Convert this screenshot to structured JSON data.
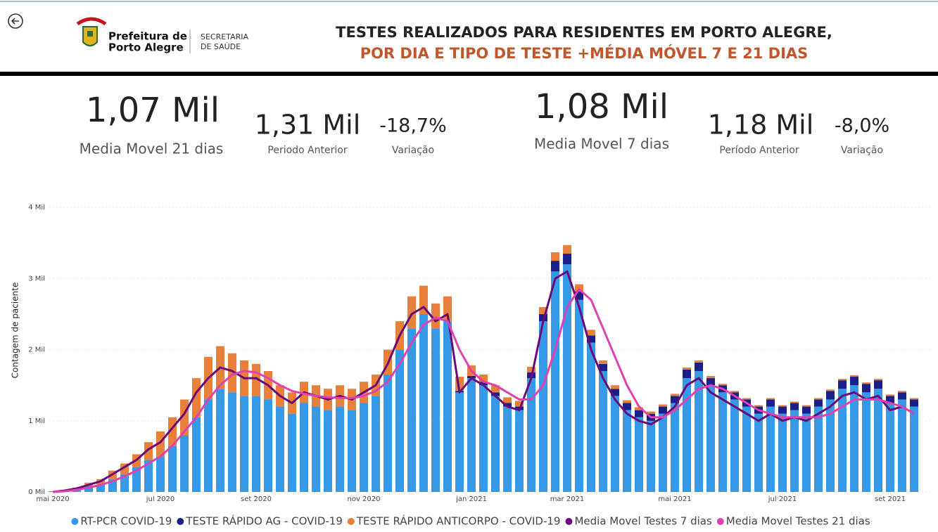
{
  "header": {
    "logo_line1": "Prefeitura de",
    "logo_line2": "Porto Alegre",
    "dept_line1": "SECRETARIA",
    "dept_line2": "DE SAÚDE",
    "title_line1": "TESTES REALIZADOS PARA RESIDENTES EM PORTO ALEGRE,",
    "title_line2": "POR DIA E TIPO DE TESTE +MÉDIA MÓVEL 7 E 21 DIAS"
  },
  "kpis": {
    "mm21": {
      "value": "1,07 Mil",
      "label": "Media Movel 21 dias"
    },
    "prev21": {
      "value": "1,31 Mil",
      "label": "Periodo Anterior"
    },
    "var21": {
      "value": "-18,7%",
      "label": "Variação"
    },
    "mm7": {
      "value": "1,08 Mil",
      "label": "Media Movel 7 dias"
    },
    "prev7": {
      "value": "1,18 Mil",
      "label": "Período Anterior"
    },
    "var7": {
      "value": "-8,0%",
      "label": "Variação"
    }
  },
  "chart_data": {
    "type": "bar",
    "stacked": true,
    "ylabel": "Contagem de paciente",
    "ylim": [
      0,
      4.15
    ],
    "yticks": [
      {
        "value": 0,
        "label": "0 Mil"
      },
      {
        "value": 1,
        "label": "1 Mil"
      },
      {
        "value": 2,
        "label": "2 Mil"
      },
      {
        "value": 3,
        "label": "3 Mil"
      },
      {
        "value": 4,
        "label": "4 Mil"
      }
    ],
    "grid": true,
    "categories": [
      "mai 2020",
      null,
      null,
      null,
      null,
      null,
      null,
      null,
      null,
      "jul 2020",
      null,
      null,
      null,
      null,
      null,
      null,
      null,
      "set 2020",
      null,
      null,
      null,
      null,
      null,
      null,
      null,
      null,
      "nov 2020",
      null,
      null,
      null,
      null,
      null,
      null,
      null,
      null,
      "jan 2021",
      null,
      null,
      null,
      null,
      null,
      null,
      null,
      "mar 2021",
      null,
      null,
      null,
      null,
      null,
      null,
      null,
      null,
      "mai 2021",
      null,
      null,
      null,
      null,
      null,
      null,
      null,
      null,
      "jul 2021",
      null,
      null,
      null,
      null,
      null,
      null,
      null,
      null,
      "set 2021",
      null,
      null
    ],
    "series": [
      {
        "name": "RT-PCR COVID-19",
        "color": "#3599e8",
        "type": "bar",
        "values": [
          0.01,
          0.02,
          0.04,
          0.08,
          0.1,
          0.18,
          0.25,
          0.35,
          0.45,
          0.5,
          0.65,
          0.8,
          1.05,
          1.3,
          1.45,
          1.4,
          1.35,
          1.35,
          1.3,
          1.2,
          1.1,
          1.25,
          1.2,
          1.15,
          1.2,
          1.15,
          1.25,
          1.35,
          1.65,
          2.0,
          2.3,
          2.5,
          2.3,
          2.4,
          1.4,
          1.6,
          1.5,
          1.35,
          1.2,
          1.15,
          1.6,
          2.4,
          3.1,
          3.2,
          2.7,
          2.1,
          1.7,
          1.35,
          1.15,
          1.05,
          1.0,
          1.1,
          1.25,
          1.6,
          1.7,
          1.5,
          1.4,
          1.3,
          1.2,
          1.1,
          1.2,
          1.1,
          1.15,
          1.1,
          1.2,
          1.3,
          1.45,
          1.5,
          1.4,
          1.45,
          1.25,
          1.3,
          1.2
        ]
      },
      {
        "name": "TESTE RÁPIDO AG - COVID-19",
        "color": "#1b1f8a",
        "type": "bar",
        "values": [
          0,
          0,
          0,
          0,
          0,
          0,
          0,
          0,
          0,
          0,
          0,
          0,
          0,
          0,
          0,
          0,
          0,
          0,
          0,
          0,
          0,
          0,
          0,
          0,
          0,
          0,
          0,
          0,
          0,
          0,
          0,
          0,
          0,
          0,
          0.02,
          0.03,
          0.05,
          0.05,
          0.05,
          0.05,
          0.08,
          0.1,
          0.15,
          0.15,
          0.12,
          0.1,
          0.1,
          0.1,
          0.1,
          0.1,
          0.1,
          0.1,
          0.1,
          0.12,
          0.12,
          0.1,
          0.1,
          0.1,
          0.1,
          0.1,
          0.1,
          0.1,
          0.1,
          0.1,
          0.1,
          0.12,
          0.12,
          0.12,
          0.12,
          0.12,
          0.1,
          0.1,
          0.1
        ]
      },
      {
        "name": "TESTE RÁPIDO ANTICORPO - COVID-19",
        "color": "#e8803a",
        "type": "bar",
        "values": [
          0,
          0.01,
          0.02,
          0.05,
          0.08,
          0.12,
          0.15,
          0.18,
          0.25,
          0.35,
          0.4,
          0.5,
          0.55,
          0.6,
          0.6,
          0.55,
          0.5,
          0.45,
          0.4,
          0.3,
          0.3,
          0.3,
          0.3,
          0.3,
          0.3,
          0.3,
          0.3,
          0.3,
          0.35,
          0.4,
          0.45,
          0.4,
          0.35,
          0.35,
          0.2,
          0.15,
          0.1,
          0.1,
          0.08,
          0.08,
          0.08,
          0.1,
          0.12,
          0.12,
          0.1,
          0.08,
          0.05,
          0.05,
          0.04,
          0.04,
          0.03,
          0.03,
          0.03,
          0.03,
          0.03,
          0.03,
          0.02,
          0.02,
          0.02,
          0.02,
          0.02,
          0.02,
          0.02,
          0.02,
          0.02,
          0.02,
          0.02,
          0.02,
          0.02,
          0.02,
          0.02,
          0.02,
          0.02
        ]
      },
      {
        "name": "Media Movel Testes 7 dias",
        "color": "#6a0a78",
        "type": "line",
        "values": [
          0,
          0.02,
          0.05,
          0.1,
          0.15,
          0.25,
          0.35,
          0.45,
          0.6,
          0.7,
          0.9,
          1.1,
          1.4,
          1.6,
          1.75,
          1.7,
          1.6,
          1.6,
          1.5,
          1.35,
          1.25,
          1.4,
          1.35,
          1.3,
          1.35,
          1.3,
          1.4,
          1.5,
          1.8,
          2.2,
          2.5,
          2.6,
          2.4,
          2.5,
          1.4,
          1.6,
          1.5,
          1.35,
          1.2,
          1.15,
          1.6,
          2.4,
          3.0,
          3.1,
          2.6,
          2.0,
          1.6,
          1.3,
          1.1,
          1.0,
          0.95,
          1.05,
          1.2,
          1.5,
          1.6,
          1.4,
          1.3,
          1.2,
          1.1,
          1.0,
          1.1,
          1.0,
          1.05,
          1.0,
          1.1,
          1.2,
          1.35,
          1.4,
          1.3,
          1.35,
          1.15,
          1.2,
          1.1
        ]
      },
      {
        "name": "Media Movel Testes 21 dias",
        "color": "#e040b0",
        "type": "line",
        "values": [
          0,
          0.01,
          0.03,
          0.06,
          0.1,
          0.15,
          0.22,
          0.3,
          0.4,
          0.5,
          0.65,
          0.85,
          1.05,
          1.3,
          1.5,
          1.65,
          1.7,
          1.68,
          1.6,
          1.5,
          1.42,
          1.38,
          1.35,
          1.33,
          1.32,
          1.32,
          1.35,
          1.42,
          1.55,
          1.8,
          2.1,
          2.35,
          2.45,
          2.4,
          2.0,
          1.7,
          1.55,
          1.5,
          1.4,
          1.3,
          1.3,
          1.5,
          2.0,
          2.6,
          2.85,
          2.7,
          2.3,
          1.9,
          1.5,
          1.2,
          1.05,
          1.05,
          1.15,
          1.3,
          1.45,
          1.5,
          1.45,
          1.35,
          1.25,
          1.15,
          1.1,
          1.05,
          1.05,
          1.05,
          1.05,
          1.1,
          1.2,
          1.3,
          1.3,
          1.3,
          1.25,
          1.2,
          1.1
        ]
      }
    ]
  }
}
